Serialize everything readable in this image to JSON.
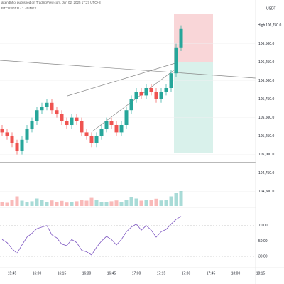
{
  "header": {
    "publisher": "akendhhol published on TradingView.com, Jun 02, 2025 17:27 UTC+8",
    "symbol": "BTCUSDT.P · 1 · BINGX",
    "currency": "USDT",
    "high_label": "High"
  },
  "chart_data": {
    "type": "candlestick",
    "categories": [
      null,
      null,
      "15:45",
      null,
      null,
      null,
      null,
      "16:00",
      null,
      null,
      null,
      null,
      "16:15",
      null,
      null,
      null,
      null,
      "16:30",
      null,
      null,
      null,
      null,
      "16:45",
      null,
      null,
      null,
      null,
      "17:00",
      null,
      null,
      null,
      null,
      "17:15",
      null,
      null,
      null,
      null,
      "17:30",
      null,
      null,
      null,
      null,
      "17:45",
      null,
      null,
      null,
      null,
      "18:00",
      null,
      null,
      null,
      null,
      "18:15"
    ],
    "open": [
      105350,
      105300,
      105250,
      105150,
      105050,
      105200,
      105350,
      105450,
      105600,
      105650,
      105700,
      105600,
      105550,
      105450,
      105400,
      105500,
      105450,
      105300,
      105250,
      105150,
      105250,
      105350,
      105450,
      105400,
      105300,
      105400,
      105600,
      105750,
      105850,
      105800,
      105900,
      105850,
      105750,
      105850,
      105900,
      106100,
      106450,
      null,
      null,
      null,
      null,
      null,
      null,
      null,
      null,
      null,
      null,
      null,
      null,
      null,
      null,
      null,
      null
    ],
    "high": [
      105400,
      105350,
      105300,
      105200,
      105250,
      105400,
      105500,
      105650,
      105700,
      105750,
      105750,
      105650,
      105600,
      105500,
      105550,
      105550,
      105500,
      105350,
      105300,
      105300,
      105400,
      105500,
      105500,
      105450,
      105450,
      105650,
      105800,
      105900,
      105900,
      105950,
      105950,
      105900,
      105900,
      105950,
      106150,
      106500,
      106750,
      null,
      null,
      null,
      null,
      null,
      null,
      null,
      null,
      null,
      null,
      null,
      null,
      null,
      null,
      null,
      null
    ],
    "low": [
      105250,
      105200,
      105100,
      105000,
      105000,
      105150,
      105300,
      105400,
      105550,
      105600,
      105550,
      105500,
      105400,
      105350,
      105350,
      105400,
      105250,
      105200,
      105100,
      105100,
      105200,
      105300,
      105350,
      105250,
      105250,
      105350,
      105550,
      105700,
      105750,
      105750,
      105800,
      105700,
      105700,
      105800,
      105850,
      106050,
      106400,
      null,
      null,
      null,
      null,
      null,
      null,
      null,
      null,
      null,
      null,
      null,
      null,
      null,
      null,
      null,
      null
    ],
    "close": [
      105300,
      105250,
      105150,
      105050,
      105200,
      105350,
      105450,
      105600,
      105650,
      105700,
      105600,
      105550,
      105450,
      105400,
      105500,
      105450,
      105300,
      105250,
      105150,
      105250,
      105350,
      105450,
      105400,
      105300,
      105400,
      105600,
      105750,
      105850,
      105800,
      105900,
      105850,
      105750,
      105850,
      105900,
      106100,
      106450,
      106700,
      null,
      null,
      null,
      null,
      null,
      null,
      null,
      null,
      null,
      null,
      null,
      null,
      null,
      null,
      null,
      null
    ],
    "volume": [
      20,
      15,
      30,
      45,
      25,
      18,
      22,
      35,
      28,
      20,
      26,
      18,
      24,
      16,
      20,
      22,
      30,
      25,
      38,
      28,
      20,
      18,
      22,
      26,
      20,
      30,
      42,
      35,
      25,
      28,
      30,
      34,
      26,
      30,
      45,
      60,
      70,
      null,
      null,
      null,
      null,
      null,
      null,
      null,
      null,
      null,
      null,
      null,
      null,
      null,
      null,
      null,
      null
    ],
    "rsi": [
      52,
      48,
      40,
      34,
      45,
      55,
      60,
      66,
      68,
      70,
      58,
      54,
      46,
      44,
      52,
      48,
      38,
      36,
      32,
      42,
      50,
      56,
      52,
      45,
      52,
      62,
      68,
      72,
      64,
      70,
      64,
      55,
      62,
      65,
      72,
      78,
      82,
      null,
      null,
      null,
      null,
      null,
      null,
      null,
      null,
      null,
      null,
      null,
      null,
      null,
      null,
      null,
      null
    ],
    "up_color": "#26a69a",
    "down_color": "#ef5350",
    "ylim": [
      104400,
      106900
    ],
    "yticks": [
      {
        "value": 104500,
        "label": "104,500.0"
      },
      {
        "value": 104750,
        "label": "104,750.0"
      },
      {
        "value": 105000,
        "label": "105,000.0"
      },
      {
        "value": 105250,
        "label": "105,250.0"
      },
      {
        "value": 105500,
        "label": "105,500.0"
      },
      {
        "value": 105750,
        "label": "105,750.0"
      },
      {
        "value": 106000,
        "label": "106,000.0"
      },
      {
        "value": 106250,
        "label": "106,250.0"
      },
      {
        "value": 106500,
        "label": "106,500.0"
      }
    ],
    "high_value": {
      "value": 106750,
      "label": "106,750.0"
    },
    "volume_ylim": [
      0,
      200
    ],
    "rsi_ylim": [
      20,
      90
    ],
    "rsi_yticks": [
      {
        "value": 30,
        "label": "30.00"
      },
      {
        "value": 50,
        "label": "50.00"
      },
      {
        "value": 70,
        "label": "70.00"
      }
    ]
  }
}
